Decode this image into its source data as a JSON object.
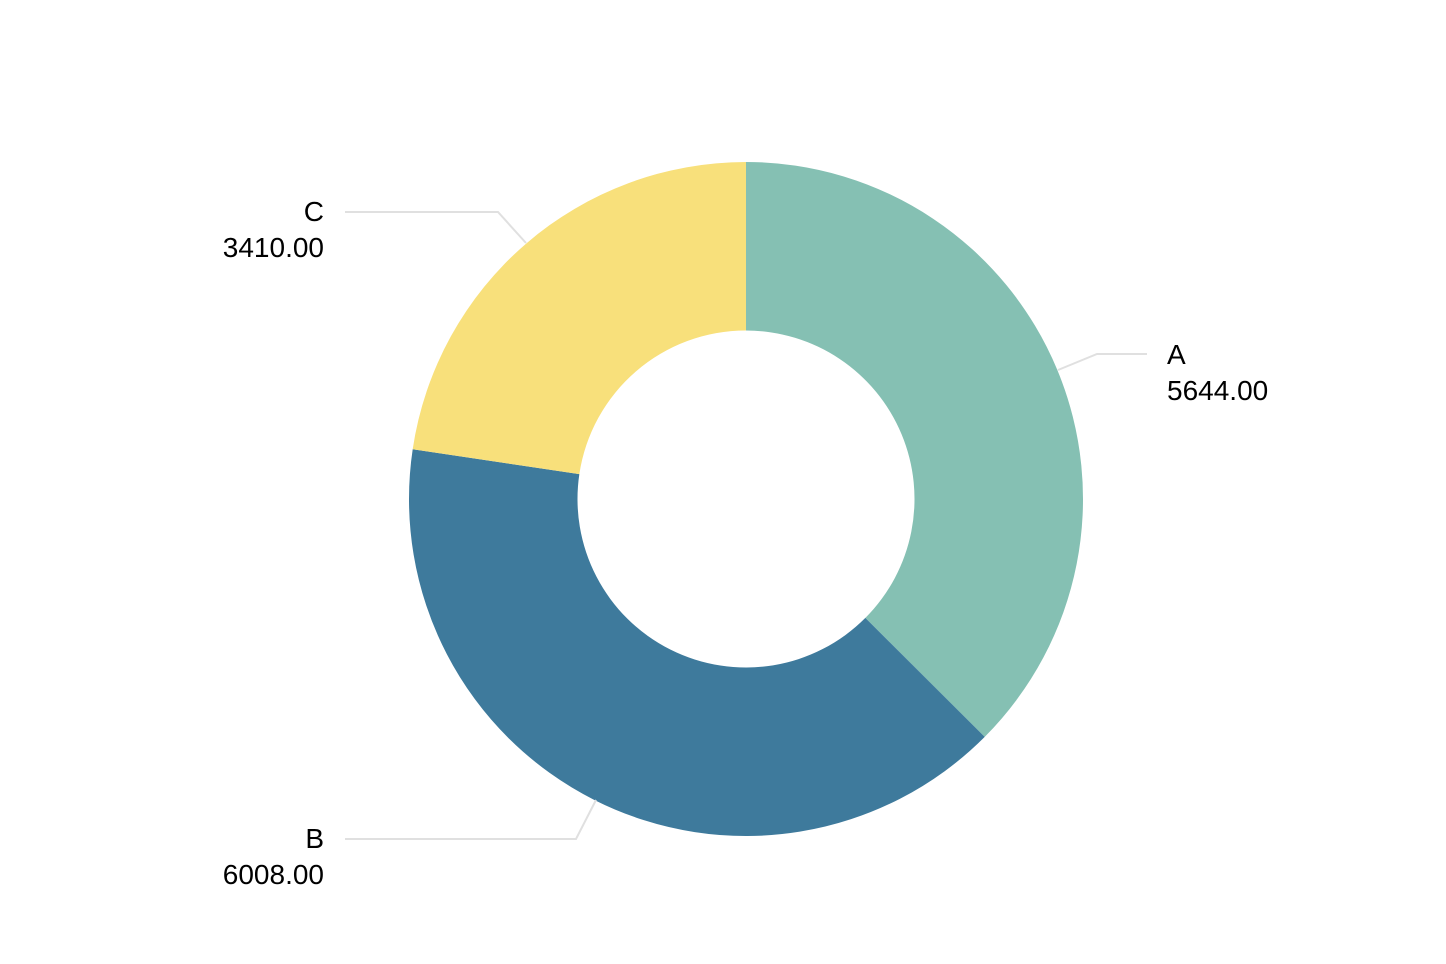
{
  "chart_data": {
    "type": "pie",
    "subtype": "donut",
    "title": "",
    "categories": [
      "A",
      "B",
      "C"
    ],
    "values": [
      5644.0,
      6008.0,
      3410.0
    ],
    "value_labels": [
      "5644.00",
      "6008.00",
      "3410.00"
    ],
    "colors": [
      "#85c0b3",
      "#3e7a9c",
      "#f8e07b"
    ],
    "start_angle_deg": 0,
    "direction": "clockwise",
    "inner_radius_ratio": 0.5,
    "legend": "none",
    "label_style": "outside with leader lines"
  },
  "labels": {
    "A": {
      "name": "A",
      "value": "5644.00"
    },
    "B": {
      "name": "B",
      "value": "6008.00"
    },
    "C": {
      "name": "C",
      "value": "3410.00"
    }
  }
}
